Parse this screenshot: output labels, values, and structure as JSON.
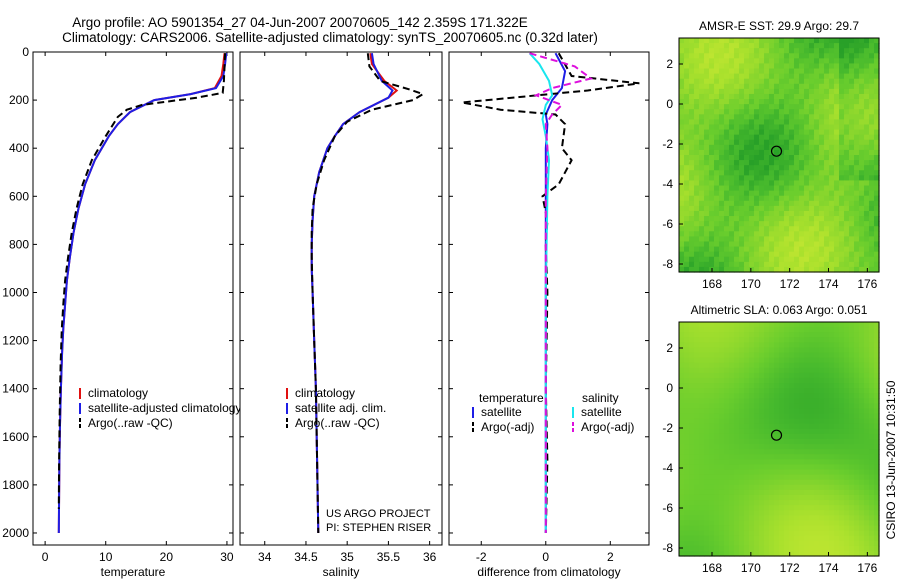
{
  "header": {
    "title_line1": "Argo profile: AO 5901354_27 04-Jun-2007 20070605_142 2.359S 171.322E",
    "title_line2": "Climatology: CARS2006. Satellite-adjusted climatology: synTS_20070605.nc (0.32d later)"
  },
  "colors": {
    "climatology": "#e01010",
    "satellite": "#1e1ee6",
    "argo": "#000000",
    "salinity_satellite": "#19e6ee",
    "salinity_argo": "#dd10dd"
  },
  "chart_data": [
    {
      "type": "line",
      "xlabel": "temperature",
      "ylim": [
        2050,
        0
      ],
      "xlim": [
        -2,
        31
      ],
      "yticks": [
        0,
        200,
        400,
        600,
        800,
        1000,
        1200,
        1400,
        1600,
        1800,
        2000
      ],
      "xticks": [
        0,
        10,
        20,
        30
      ],
      "legend": [
        "climatology",
        "satellite-adjusted climatology",
        "Argo(..raw -QC)"
      ],
      "series": [
        {
          "name": "climatology",
          "style": "solid",
          "color": "#e01010",
          "x": [
            29.6,
            29.4,
            29.1,
            28.0,
            24.0,
            18.0,
            14.0,
            12.0,
            10.5,
            8.2,
            6.6,
            5.5,
            4.7,
            4.1,
            3.6,
            3.3,
            3.0,
            2.8,
            2.6,
            2.45,
            2.35,
            2.3,
            2.25
          ],
          "y": [
            5,
            50,
            100,
            150,
            175,
            200,
            250,
            300,
            350,
            450,
            550,
            650,
            750,
            850,
            950,
            1050,
            1150,
            1250,
            1400,
            1550,
            1700,
            1850,
            2000
          ]
        },
        {
          "name": "satellite-adjusted climatology",
          "style": "solid",
          "color": "#1e1ee6",
          "x": [
            29.9,
            29.7,
            29.4,
            28.2,
            24.0,
            18.0,
            14.0,
            12.0,
            10.5,
            8.2,
            6.6,
            5.5,
            4.7,
            4.1,
            3.6,
            3.3,
            3.0,
            2.8,
            2.6,
            2.45,
            2.35,
            2.3,
            2.25
          ],
          "y": [
            5,
            50,
            100,
            150,
            175,
            200,
            250,
            300,
            350,
            450,
            550,
            650,
            750,
            850,
            950,
            1050,
            1150,
            1250,
            1400,
            1550,
            1700,
            1850,
            2000
          ]
        },
        {
          "name": "Argo(..raw -QC)",
          "style": "dashed",
          "color": "#000000",
          "x": [
            29.7,
            29.6,
            29.5,
            29.3,
            25.0,
            16.0,
            13.5,
            12.0,
            10.0,
            7.7,
            6.2,
            5.2,
            4.4,
            3.8,
            3.3,
            3.0,
            2.75,
            2.55,
            2.4,
            2.3,
            2.25
          ],
          "y": [
            5,
            60,
            120,
            170,
            190,
            220,
            240,
            270,
            350,
            450,
            550,
            650,
            750,
            850,
            950,
            1050,
            1150,
            1300,
            1500,
            1700,
            1900
          ]
        }
      ]
    },
    {
      "type": "line",
      "xlabel": "salinity",
      "ylim": [
        2050,
        0
      ],
      "xlim": [
        33.7,
        36.15
      ],
      "xticks": [
        34,
        34.5,
        35,
        35.5,
        36
      ],
      "legend": [
        "climatology",
        "satellite adj. clim.",
        "Argo(..raw -QC)"
      ],
      "series": [
        {
          "name": "climatology",
          "style": "solid",
          "color": "#e01010",
          "x": [
            35.28,
            35.3,
            35.45,
            35.6,
            35.5,
            35.15,
            34.95,
            34.85,
            34.76,
            34.66,
            34.6,
            34.58,
            34.57,
            34.57,
            34.58,
            34.6,
            34.62,
            34.63,
            34.64,
            34.65
          ],
          "y": [
            5,
            50,
            120,
            160,
            190,
            250,
            300,
            350,
            400,
            500,
            600,
            700,
            800,
            900,
            1000,
            1200,
            1400,
            1600,
            1800,
            2000
          ]
        },
        {
          "name": "satellite adj. clim.",
          "style": "solid",
          "color": "#1e1ee6",
          "x": [
            35.3,
            35.32,
            35.42,
            35.55,
            35.5,
            35.15,
            34.95,
            34.85,
            34.76,
            34.66,
            34.6,
            34.58,
            34.57,
            34.57,
            34.58,
            34.6,
            34.62,
            34.63,
            34.64,
            34.65
          ],
          "y": [
            5,
            50,
            120,
            160,
            190,
            250,
            300,
            350,
            400,
            500,
            600,
            700,
            800,
            900,
            1000,
            1200,
            1400,
            1600,
            1800,
            2000
          ]
        },
        {
          "name": "Argo(..raw -QC)",
          "style": "dashed",
          "color": "#000000",
          "x": [
            35.25,
            35.27,
            35.4,
            35.75,
            35.92,
            35.8,
            35.3,
            35.0,
            34.85,
            34.72,
            34.63,
            34.58,
            34.57,
            34.57,
            34.58,
            34.6,
            34.62,
            34.63,
            34.64,
            34.65
          ],
          "y": [
            5,
            60,
            120,
            155,
            175,
            200,
            240,
            290,
            350,
            450,
            550,
            650,
            750,
            850,
            1000,
            1200,
            1400,
            1600,
            1800,
            2000
          ]
        }
      ]
    },
    {
      "type": "line",
      "xlabel": "difference from climatology",
      "ylim": [
        2050,
        0
      ],
      "xlim": [
        -3,
        3.2
      ],
      "xticks": [
        -2,
        0,
        2
      ],
      "legend_left_title": "temperature",
      "legend_right_title": "salinity",
      "legend_left": [
        "satellite",
        "Argo(-adj)"
      ],
      "legend_right": [
        "satellite",
        "Argo(-adj)"
      ],
      "series": [
        {
          "name": "temperature satellite",
          "style": "solid",
          "color": "#1e1ee6",
          "x": [
            0.3,
            0.6,
            0.5,
            0.2,
            0.0,
            0.05,
            0.0,
            0.0,
            0.0,
            0.0
          ],
          "y": [
            5,
            80,
            150,
            200,
            260,
            300,
            400,
            600,
            1000,
            2000
          ]
        },
        {
          "name": "temperature Argo(-adj)",
          "style": "dashed",
          "color": "#000000",
          "x": [
            0.4,
            0.8,
            2.9,
            1.3,
            -2.6,
            -1.4,
            0.3,
            0.6,
            0.5,
            0.8,
            0.4,
            -0.1,
            0.05,
            0.0,
            0.05,
            0.0,
            0.05,
            0.0
          ],
          "y": [
            5,
            100,
            130,
            160,
            210,
            240,
            260,
            300,
            400,
            450,
            550,
            600,
            700,
            800,
            1000,
            1400,
            1700,
            2000
          ]
        },
        {
          "name": "salinity satellite",
          "style": "solid",
          "color": "#19e6ee",
          "x": [
            -0.5,
            -0.2,
            0.1,
            0.2,
            0.0,
            -0.1,
            0.0,
            0.1,
            0.05,
            0.0,
            0.0
          ],
          "y": [
            5,
            50,
            120,
            180,
            220,
            280,
            350,
            450,
            600,
            1000,
            2000
          ]
        },
        {
          "name": "salinity Argo(-adj)",
          "style": "dashed",
          "color": "#dd10dd",
          "x": [
            -0.5,
            0.9,
            1.4,
            0.2,
            -0.3,
            0.5,
            0.2,
            0.0,
            0.05,
            0.0,
            0.0
          ],
          "y": [
            5,
            60,
            110,
            150,
            180,
            220,
            260,
            300,
            400,
            600,
            2000
          ]
        }
      ]
    },
    {
      "type": "heatmap",
      "title": "AMSR-E SST: 29.9 Argo: 29.7",
      "xlim": [
        166.3,
        176.6
      ],
      "ylim": [
        -8.4,
        3.3
      ],
      "xticks": [
        168,
        170,
        172,
        174,
        176
      ],
      "yticks": [
        2,
        0,
        -2,
        -4,
        -6,
        -8
      ],
      "marker": {
        "x": 171.322,
        "y": -2.359
      }
    },
    {
      "type": "heatmap",
      "title": "Altimetric SLA: 0.063 Argo: 0.051",
      "xlim": [
        166.3,
        176.6
      ],
      "ylim": [
        -8.4,
        3.3
      ],
      "xticks": [
        168,
        170,
        172,
        174,
        176
      ],
      "yticks": [
        2,
        0,
        -2,
        -4,
        -6,
        -8
      ],
      "marker": {
        "x": 171.322,
        "y": -2.359
      }
    }
  ],
  "annotations": {
    "project_line1": "US ARGO PROJECT",
    "project_line2": "PI: STEPHEN RISER",
    "timestamp": "CSIRO 13-Jun-2007 10:31:50"
  }
}
